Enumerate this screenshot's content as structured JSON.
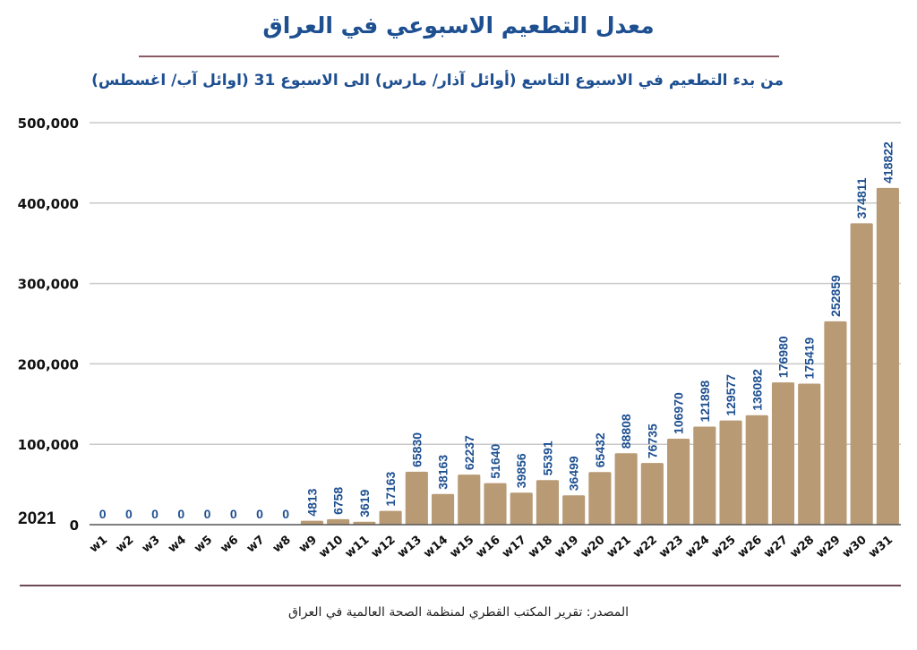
{
  "header": {
    "title": "معدل التطعيم الاسبوعي في العراق",
    "subtitle": "من بدء التطعيم في الاسبوع التاسع (أوائل آذار/ مارس) الى الاسبوع 31 (اوائل آب/ اغسطس)"
  },
  "footer": {
    "source": "المصدر: تقرير المكتب القطري لمنظمة الصحة العالمية في العراق"
  },
  "colors": {
    "bar": "#b89a74",
    "label": "#1d4f91",
    "grid": "#c8c8c8",
    "axis": "#555555",
    "title": "#1d4f91",
    "rule": "#8b5a65"
  },
  "chart_data": {
    "type": "bar",
    "title": "معدل التطعيم الاسبوعي في العراق",
    "subtitle": "من بدء التطعيم في الاسبوع التاسع (أوائل آذار/ مارس) الى الاسبوع 31 (اوائل آب/ اغسطس)",
    "xlabel": "",
    "ylabel": "",
    "year_label": "2021",
    "ylim": [
      0,
      500000
    ],
    "yticks": [
      0,
      100000,
      200000,
      300000,
      400000,
      500000
    ],
    "ytick_labels": [
      "0",
      "100,000",
      "200,000",
      "300,000",
      "400,000",
      "500,000"
    ],
    "grid": true,
    "categories": [
      "w1",
      "w2",
      "w3",
      "w4",
      "w5",
      "w6",
      "w7",
      "w8",
      "w9",
      "w10",
      "w11",
      "w12",
      "w13",
      "w14",
      "w15",
      "w16",
      "w17",
      "w18",
      "w19",
      "w20",
      "w21",
      "w22",
      "w23",
      "w24",
      "w25",
      "w26",
      "w27",
      "w28",
      "w29",
      "w30",
      "w31"
    ],
    "values": [
      0,
      0,
      0,
      0,
      0,
      0,
      0,
      0,
      4813,
      6758,
      3619,
      17163,
      65830,
      38163,
      62237,
      51640,
      39856,
      55391,
      36499,
      65432,
      88808,
      76735,
      106970,
      121898,
      129577,
      136082,
      176980,
      175419,
      252859,
      374811,
      418822
    ]
  }
}
